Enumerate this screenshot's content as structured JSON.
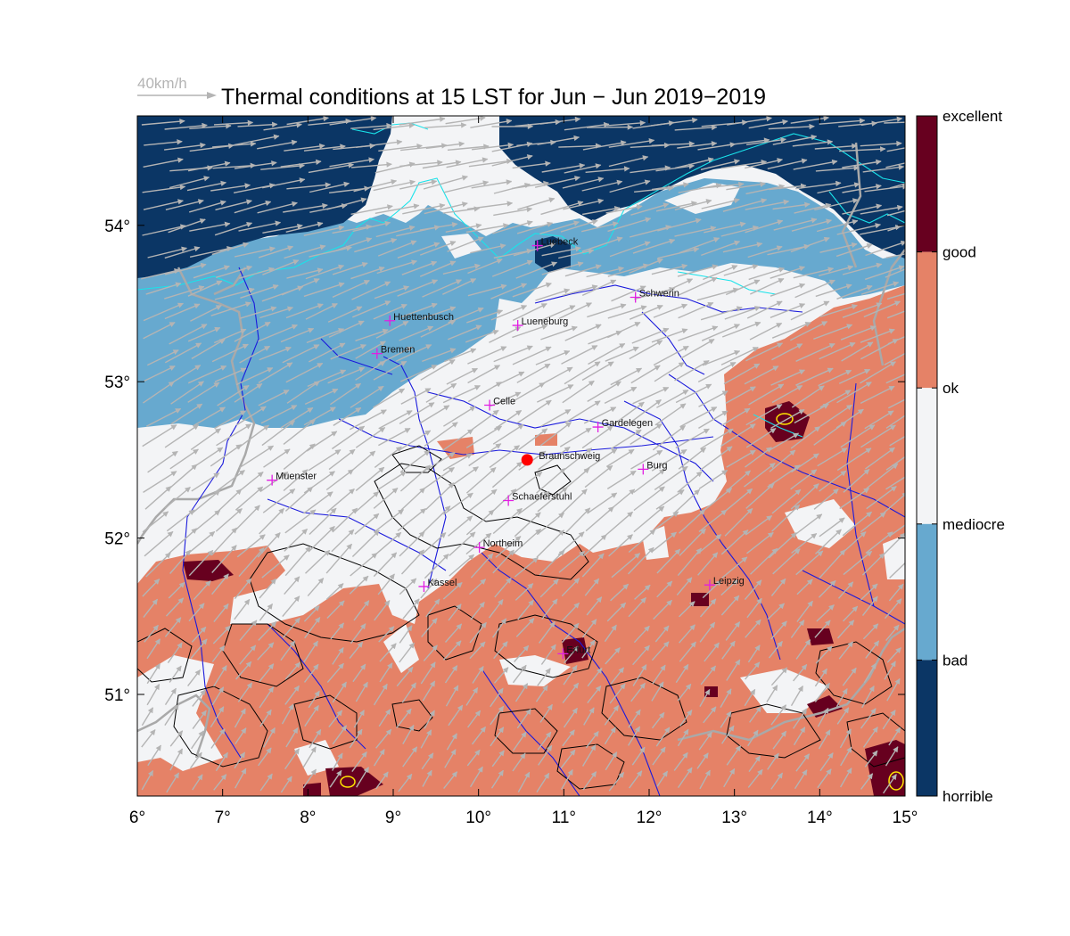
{
  "title": "Thermal conditions at 15 LST for Jun − Jun  2019−2019",
  "wind_reference": {
    "label": "40km/h"
  },
  "axes": {
    "lon_ticks": [
      "6°",
      "7°",
      "8°",
      "9°",
      "10°",
      "11°",
      "12°",
      "13°",
      "14°",
      "15°"
    ],
    "lat_ticks": [
      "51°",
      "52°",
      "53°",
      "54°"
    ],
    "lon_range": [
      6,
      15
    ],
    "lat_range": [
      50.35,
      54.7
    ]
  },
  "colorbar": {
    "labels": [
      "excellent",
      "good",
      "ok",
      "mediocre",
      "bad",
      "horrible"
    ],
    "bands": [
      {
        "from": "excellent",
        "to": "good",
        "color": "#67001f"
      },
      {
        "from": "good",
        "to": "ok",
        "color": "#e58267"
      },
      {
        "from": "ok",
        "to": "mediocre",
        "color": "#f3f4f6"
      },
      {
        "from": "mediocre",
        "to": "bad",
        "color": "#67a9cf"
      },
      {
        "from": "bad",
        "to": "horrible",
        "color": "#0b3665"
      }
    ]
  },
  "colors": {
    "horrible": "#0b3665",
    "bad": "#67a9cf",
    "mediocre": "#f3f4f6",
    "good": "#e58267",
    "excellent": "#67001f",
    "rivers": "#1a1adc",
    "coast": "#19e3ea",
    "borders": "#a9a9a9",
    "terrain": "#000000",
    "wind": "#b4b4b4",
    "city_marker": "#e21ee2",
    "site_marker": "#ff0000"
  },
  "cities": [
    {
      "name": "Luebeck",
      "lon": 10.69,
      "lat": 53.87
    },
    {
      "name": "Schwerin",
      "lon": 11.84,
      "lat": 53.54
    },
    {
      "name": "Huettenbusch",
      "lon": 8.96,
      "lat": 53.39
    },
    {
      "name": "Lueneburg",
      "lon": 10.46,
      "lat": 53.36
    },
    {
      "name": "Bremen",
      "lon": 8.81,
      "lat": 53.18
    },
    {
      "name": "Celle",
      "lon": 10.13,
      "lat": 52.85
    },
    {
      "name": "Gardelegen",
      "lon": 11.4,
      "lat": 52.71
    },
    {
      "name": "Burg",
      "lon": 11.93,
      "lat": 52.44
    },
    {
      "name": "Muenster",
      "lon": 7.58,
      "lat": 52.37
    },
    {
      "name": "Schaeferstuhl",
      "lon": 10.35,
      "lat": 52.24
    },
    {
      "name": "Northeim",
      "lon": 10.01,
      "lat": 51.94
    },
    {
      "name": "Leipzig",
      "lon": 12.71,
      "lat": 51.7
    },
    {
      "name": "Kassel",
      "lon": 9.36,
      "lat": 51.69
    },
    {
      "name": "Erfurt",
      "lon": 10.99,
      "lat": 51.26
    }
  ],
  "site": {
    "name": "Braunschweig",
    "lon": 10.57,
    "lat": 52.5
  }
}
